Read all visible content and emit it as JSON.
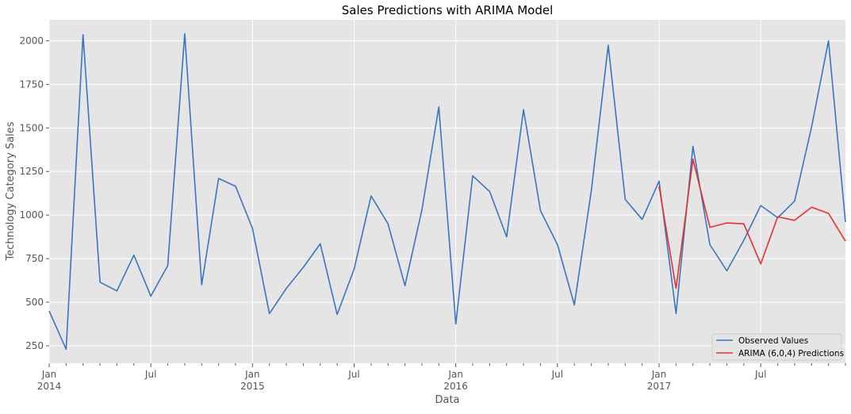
{
  "chart_data": {
    "type": "line",
    "title": "Sales Predictions with ARIMA Model",
    "xlabel": "Data",
    "ylabel": "Technology Category Sales",
    "ylim": [
      150,
      2120
    ],
    "xlim": [
      "2014-01",
      "2017-12"
    ],
    "grid": true,
    "legend_position": "bottom-right",
    "y_ticks": [
      250,
      500,
      750,
      1000,
      1250,
      1500,
      1750,
      2000
    ],
    "x_ticks": [
      {
        "date": "2014-01",
        "label": "Jan",
        "year": "2014"
      },
      {
        "date": "2014-07",
        "label": "Jul",
        "year": ""
      },
      {
        "date": "2015-01",
        "label": "Jan",
        "year": "2015"
      },
      {
        "date": "2015-07",
        "label": "Jul",
        "year": ""
      },
      {
        "date": "2016-01",
        "label": "Jan",
        "year": "2016"
      },
      {
        "date": "2016-07",
        "label": "Jul",
        "year": ""
      },
      {
        "date": "2017-01",
        "label": "Jan",
        "year": "2017"
      },
      {
        "date": "2017-07",
        "label": "Jul",
        "year": ""
      }
    ],
    "series": [
      {
        "name": "Observed Values",
        "color": "#3c74c0",
        "x": [
          "2014-01",
          "2014-02",
          "2014-03",
          "2014-04",
          "2014-05",
          "2014-06",
          "2014-07",
          "2014-08",
          "2014-09",
          "2014-10",
          "2014-11",
          "2014-12",
          "2015-01",
          "2015-02",
          "2015-03",
          "2015-04",
          "2015-05",
          "2015-06",
          "2015-07",
          "2015-08",
          "2015-09",
          "2015-10",
          "2015-11",
          "2015-12",
          "2016-01",
          "2016-02",
          "2016-03",
          "2016-04",
          "2016-05",
          "2016-06",
          "2016-07",
          "2016-08",
          "2016-09",
          "2016-10",
          "2016-11",
          "2016-12",
          "2017-01",
          "2017-02",
          "2017-03",
          "2017-04",
          "2017-05",
          "2017-06",
          "2017-07",
          "2017-08",
          "2017-09",
          "2017-10",
          "2017-11",
          "2017-12"
        ],
        "values": [
          450,
          230,
          2035,
          615,
          565,
          770,
          535,
          710,
          2040,
          600,
          1210,
          1165,
          925,
          435,
          580,
          700,
          835,
          430,
          690,
          1110,
          950,
          595,
          1030,
          1620,
          375,
          1225,
          1135,
          875,
          1605,
          1025,
          830,
          485,
          1140,
          1975,
          1090,
          975,
          1195,
          435,
          1395,
          830,
          680,
          855,
          1055,
          985,
          1080,
          1505,
          2000,
          960
        ]
      },
      {
        "name": "ARIMA (6,0,4) Predictions",
        "color": "#e8302a",
        "x": [
          "2017-01",
          "2017-02",
          "2017-03",
          "2017-04",
          "2017-05",
          "2017-06",
          "2017-07",
          "2017-08",
          "2017-09",
          "2017-10",
          "2017-11",
          "2017-12"
        ],
        "values": [
          1165,
          580,
          1320,
          930,
          955,
          950,
          720,
          990,
          970,
          1045,
          1010,
          850
        ]
      }
    ]
  }
}
